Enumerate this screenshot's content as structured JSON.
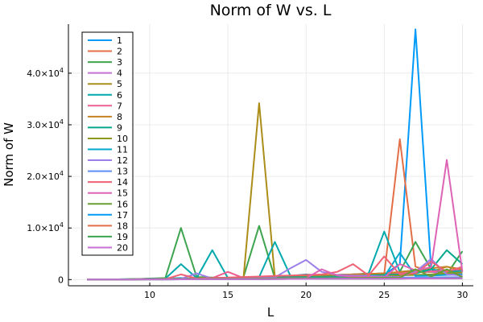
{
  "chart_data": {
    "type": "line",
    "title": "Norm of W vs. L",
    "xlabel": "L",
    "ylabel": "Norm of W",
    "x": [
      6,
      7,
      8,
      9,
      10,
      11,
      12,
      13,
      14,
      15,
      16,
      17,
      18,
      19,
      20,
      21,
      22,
      23,
      24,
      25,
      26,
      27,
      28,
      29,
      30
    ],
    "xlim": [
      4.8,
      30.7
    ],
    "ylim": [
      -1200,
      49500
    ],
    "xticks": [
      10,
      15,
      20,
      25,
      30
    ],
    "xtick_labels": [
      "10",
      "15",
      "20",
      "25",
      "30"
    ],
    "yticks": [
      0,
      10000,
      20000,
      30000,
      40000
    ],
    "ytick_labels": [
      {
        "mantissa": "0",
        "exp": ""
      },
      {
        "mantissa": "1.0×10",
        "exp": "4"
      },
      {
        "mantissa": "2.0×10",
        "exp": "4"
      },
      {
        "mantissa": "3.0×10",
        "exp": "4"
      },
      {
        "mantissa": "4.0×10",
        "exp": "4"
      }
    ],
    "grid": true,
    "legend_position": "top-left",
    "series": [
      {
        "name": "1",
        "color": "#009AFA",
        "values": [
          0,
          0,
          50,
          80,
          150,
          200,
          300,
          100,
          200,
          300,
          200,
          300,
          500,
          400,
          600,
          800,
          500,
          700,
          600,
          1000,
          3000,
          48500,
          2000,
          1500,
          2000
        ]
      },
      {
        "name": "2",
        "color": "#E36F47",
        "values": [
          0,
          0,
          30,
          60,
          100,
          150,
          200,
          100,
          150,
          200,
          300,
          200,
          300,
          400,
          500,
          600,
          500,
          700,
          600,
          1000,
          27200,
          2500,
          1500,
          1000,
          1500
        ]
      },
      {
        "name": "3",
        "color": "#3EA44E",
        "values": [
          0,
          0,
          50,
          100,
          200,
          300,
          10000,
          500,
          400,
          300,
          500,
          10400,
          300,
          500,
          600,
          400,
          800,
          600,
          1000,
          600,
          1500,
          7300,
          2000,
          1000,
          5500
        ]
      },
      {
        "name": "4",
        "color": "#C371D2",
        "values": [
          0,
          0,
          40,
          60,
          120,
          150,
          180,
          150,
          200,
          250,
          300,
          250,
          400,
          500,
          600,
          700,
          800,
          700,
          900,
          1000,
          1200,
          1400,
          1500,
          1000,
          1200
        ]
      },
      {
        "name": "5",
        "color": "#AC8D18",
        "values": [
          0,
          0,
          30,
          60,
          100,
          150,
          200,
          200,
          250,
          300,
          350,
          34200,
          500,
          600,
          700,
          800,
          900,
          1000,
          1100,
          1200,
          1300,
          1500,
          1500,
          2500,
          1800
        ]
      },
      {
        "name": "6",
        "color": "#00A9AD",
        "values": [
          0,
          0,
          50,
          100,
          150,
          200,
          3000,
          300,
          5700,
          300,
          400,
          500,
          7300,
          700,
          1000,
          800,
          900,
          1000,
          1200,
          9300,
          1500,
          1800,
          2000,
          1500,
          1700
        ]
      },
      {
        "name": "7",
        "color": "#ED5E93",
        "values": [
          0,
          0,
          30,
          50,
          80,
          100,
          150,
          200,
          300,
          1500,
          300,
          400,
          500,
          600,
          700,
          800,
          900,
          1000,
          1100,
          1200,
          1300,
          1400,
          1600,
          1800,
          2000
        ]
      },
      {
        "name": "8",
        "color": "#C68225",
        "values": [
          0,
          0,
          40,
          80,
          120,
          160,
          200,
          250,
          300,
          350,
          400,
          450,
          500,
          600,
          700,
          800,
          900,
          1000,
          1100,
          1200,
          1500,
          1800,
          2200,
          2500,
          2000
        ]
      },
      {
        "name": "9",
        "color": "#00A98D",
        "values": [
          0,
          0,
          30,
          60,
          90,
          120,
          150,
          180,
          220,
          260,
          300,
          350,
          400,
          450,
          500,
          550,
          600,
          700,
          800,
          900,
          1000,
          1200,
          2000,
          5700,
          3000
        ]
      },
      {
        "name": "10",
        "color": "#8E971E",
        "values": [
          0,
          0,
          20,
          40,
          60,
          80,
          100,
          130,
          160,
          190,
          220,
          260,
          300,
          350,
          400,
          450,
          500,
          550,
          600,
          700,
          800,
          900,
          1000,
          1200,
          1400
        ]
      },
      {
        "name": "11",
        "color": "#00A8CB",
        "values": [
          0,
          0,
          20,
          40,
          60,
          80,
          100,
          120,
          150,
          180,
          210,
          240,
          280,
          320,
          360,
          400,
          450,
          500,
          550,
          600,
          5200,
          700,
          800,
          900,
          1000
        ]
      },
      {
        "name": "12",
        "color": "#9B7FE9",
        "values": [
          0,
          0,
          30,
          50,
          80,
          100,
          120,
          1200,
          200,
          250,
          300,
          350,
          400,
          2200,
          3800,
          1500,
          900,
          800,
          700,
          600,
          500,
          1500,
          4000,
          1000,
          800
        ]
      },
      {
        "name": "13",
        "color": "#618DF6",
        "values": [
          0,
          0,
          20,
          40,
          60,
          80,
          100,
          120,
          140,
          160,
          180,
          200,
          220,
          240,
          260,
          280,
          300,
          320,
          340,
          360,
          380,
          400,
          420,
          440,
          460
        ]
      },
      {
        "name": "14",
        "color": "#F06173",
        "values": [
          0,
          0,
          30,
          50,
          80,
          100,
          1000,
          200,
          300,
          400,
          500,
          600,
          700,
          800,
          900,
          1000,
          1500,
          3000,
          800,
          4500,
          1000,
          1200,
          3500,
          1500,
          2500
        ]
      },
      {
        "name": "15",
        "color": "#DD64B5",
        "values": [
          0,
          0,
          20,
          40,
          60,
          80,
          100,
          120,
          140,
          160,
          180,
          200,
          220,
          240,
          260,
          2000,
          800,
          600,
          500,
          400,
          3000,
          1800,
          2400,
          23200,
          1500
        ]
      },
      {
        "name": "16",
        "color": "#6B9E32",
        "values": [
          0,
          0,
          20,
          40,
          60,
          80,
          100,
          120,
          140,
          160,
          180,
          200,
          220,
          240,
          260,
          280,
          300,
          320,
          340,
          360,
          380,
          2000,
          600,
          2000,
          500
        ]
      },
      {
        "name": "17",
        "color": "#009AFA",
        "values": [
          0,
          0,
          10,
          20,
          30,
          40,
          50,
          60,
          70,
          80,
          90,
          100,
          110,
          120,
          130,
          140,
          150,
          160,
          170,
          180,
          190,
          200,
          210,
          220,
          230
        ]
      },
      {
        "name": "18",
        "color": "#E36F47",
        "values": [
          0,
          0,
          10,
          20,
          30,
          40,
          50,
          60,
          70,
          80,
          90,
          100,
          110,
          120,
          130,
          140,
          150,
          160,
          170,
          180,
          190,
          200,
          210,
          220,
          230
        ]
      },
      {
        "name": "19",
        "color": "#3EA44E",
        "values": [
          0,
          0,
          10,
          20,
          30,
          40,
          50,
          60,
          70,
          80,
          90,
          100,
          110,
          120,
          130,
          140,
          150,
          160,
          170,
          180,
          190,
          200,
          210,
          220,
          230
        ]
      },
      {
        "name": "20",
        "color": "#C371D2",
        "values": [
          0,
          0,
          10,
          20,
          30,
          40,
          50,
          60,
          70,
          80,
          90,
          100,
          110,
          120,
          130,
          140,
          150,
          160,
          170,
          180,
          190,
          200,
          210,
          220,
          230
        ]
      }
    ]
  }
}
